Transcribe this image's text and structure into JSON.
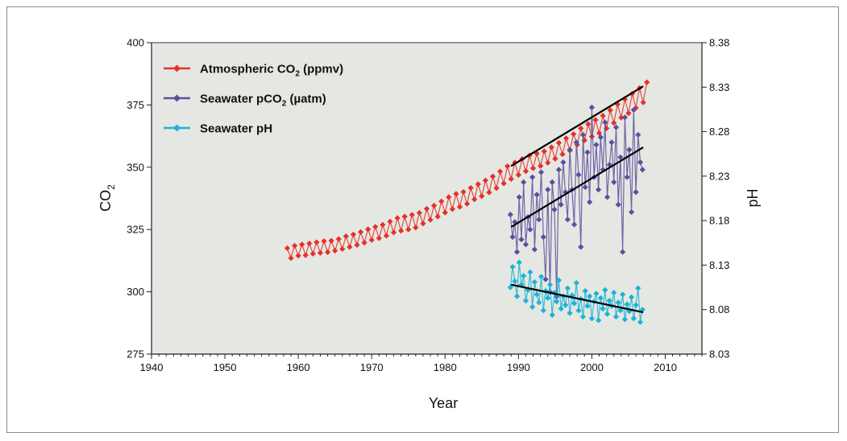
{
  "chart_data": {
    "type": "line",
    "title": "",
    "xlabel": "Year",
    "ylabel_left": "CO",
    "ylabel_left_sub": "2",
    "ylabel_right": "pH",
    "xlim": [
      1940,
      2015
    ],
    "ylim_left": [
      275,
      400
    ],
    "ylim_right": [
      8.03,
      8.38
    ],
    "x_ticks": [
      "1940",
      "1950",
      "1960",
      "1970",
      "1980",
      "1990",
      "2000",
      "2010"
    ],
    "y_left_ticks": [
      "275",
      "300",
      "325",
      "350",
      "375",
      "400"
    ],
    "y_right_ticks": [
      "8.03",
      "8.08",
      "8.13",
      "8.18",
      "8.23",
      "8.28",
      "8.33",
      "8.38"
    ],
    "grid": false,
    "background_color": "#e5e8e2",
    "legend_position": "top-left",
    "legend": [
      {
        "main": "Atmospheric CO",
        "sub": "2",
        "tail": " (ppmv)",
        "color": "#e8302a"
      },
      {
        "main": "Seawater pCO",
        "sub": "2",
        "tail": " (µatm)",
        "color": "#5a4fa0"
      },
      {
        "main": "Seawater pH",
        "sub": "",
        "tail": "",
        "color": "#1ab4d8"
      }
    ],
    "series": [
      {
        "name": "Atmospheric CO2 (ppmv)",
        "axis": "left",
        "color": "#e8302a",
        "x": [
          1958.5,
          1959,
          1959.5,
          1960,
          1960.5,
          1961,
          1961.5,
          1962,
          1962.5,
          1963,
          1963.5,
          1964,
          1964.5,
          1965,
          1965.5,
          1966,
          1966.5,
          1967,
          1967.5,
          1968,
          1968.5,
          1969,
          1969.5,
          1970,
          1970.5,
          1971,
          1971.5,
          1972,
          1972.5,
          1973,
          1973.5,
          1974,
          1974.5,
          1975,
          1975.5,
          1976,
          1976.5,
          1977,
          1977.5,
          1978,
          1978.5,
          1979,
          1979.5,
          1980,
          1980.5,
          1981,
          1981.5,
          1982,
          1982.5,
          1983,
          1983.5,
          1984,
          1984.5,
          1985,
          1985.5,
          1986,
          1986.5,
          1987,
          1987.5,
          1988,
          1988.5,
          1989,
          1989.5,
          1990,
          1990.5,
          1991,
          1991.5,
          1992,
          1992.5,
          1993,
          1993.5,
          1994,
          1994.5,
          1995,
          1995.5,
          1996,
          1996.5,
          1997,
          1997.5,
          1998,
          1998.5,
          1999,
          1999.5,
          2000,
          2000.5,
          2001,
          2001.5,
          2002,
          2002.5,
          2003,
          2003.5,
          2004,
          2004.5,
          2005,
          2005.5,
          2006,
          2006.5,
          2007,
          2007.5
        ],
        "y": [
          317.5,
          313.5,
          318.5,
          314.5,
          319,
          314.7,
          319.4,
          315.3,
          319.9,
          315.6,
          320.3,
          315.9,
          320.5,
          316.5,
          321.2,
          317.2,
          322.3,
          318,
          323,
          318.8,
          324,
          319.7,
          325.1,
          320.8,
          326.1,
          321.5,
          326.9,
          322.5,
          328.2,
          323.8,
          329.6,
          324.5,
          330.2,
          325,
          330.9,
          325.8,
          331.7,
          327.4,
          333.3,
          328.9,
          334.6,
          330.2,
          336.3,
          331.8,
          338,
          333.2,
          339.3,
          334.1,
          340.1,
          335.3,
          341.7,
          337.1,
          343.2,
          338.4,
          344.7,
          339.9,
          346.3,
          341.6,
          348.3,
          343.5,
          350.4,
          345.3,
          351.9,
          346.9,
          353.3,
          348.4,
          354.7,
          349.6,
          355.5,
          350.5,
          356.4,
          351.8,
          358,
          353.4,
          359.8,
          355.2,
          361.6,
          356.7,
          363.3,
          359,
          365.6,
          360.8,
          367.3,
          362.3,
          369,
          363.7,
          370.7,
          365.6,
          372.9,
          367.8,
          375.3,
          369.9,
          377.3,
          371.7,
          379.5,
          373.8,
          381.8,
          376,
          384.1
        ]
      },
      {
        "name": "Seawater pCO2 (µatm)",
        "axis": "left",
        "color": "#5a4fa0",
        "x": [
          1988.9,
          1989.2,
          1989.5,
          1989.8,
          1990.1,
          1990.4,
          1990.7,
          1991,
          1991.3,
          1991.6,
          1991.9,
          1992.2,
          1992.5,
          1992.8,
          1993.1,
          1993.4,
          1993.7,
          1994,
          1994.3,
          1994.6,
          1994.9,
          1995.2,
          1995.5,
          1995.8,
          1996.1,
          1996.4,
          1996.7,
          1997,
          1997.3,
          1997.6,
          1997.9,
          1998.2,
          1998.5,
          1998.8,
          1999.1,
          1999.4,
          1999.7,
          2000,
          2000.3,
          2000.6,
          2000.9,
          2001.2,
          2001.5,
          2001.8,
          2002.1,
          2002.4,
          2002.7,
          2003,
          2003.3,
          2003.6,
          2003.9,
          2004.2,
          2004.5,
          2004.8,
          2005.1,
          2005.4,
          2005.7,
          2006,
          2006.3,
          2006.6,
          2006.9
        ],
        "y": [
          331,
          322,
          328,
          316,
          338,
          321,
          344,
          319,
          330,
          325,
          346,
          317,
          339,
          329,
          348,
          322,
          305,
          341,
          300,
          344,
          333,
          298,
          349,
          335,
          352,
          340,
          329,
          357,
          341,
          327,
          360,
          347,
          318,
          363,
          342,
          356,
          336,
          374,
          346,
          359,
          341,
          362,
          349,
          368,
          338,
          351,
          360,
          344,
          366,
          335,
          354,
          316,
          370,
          346,
          357,
          332,
          373,
          340,
          363,
          352,
          349
        ]
      },
      {
        "name": "Seawater pH",
        "axis": "right",
        "color": "#1ab4d8",
        "x": [
          1988.9,
          1989.2,
          1989.5,
          1989.8,
          1990.1,
          1990.4,
          1990.7,
          1991,
          1991.3,
          1991.6,
          1991.9,
          1992.2,
          1992.5,
          1992.8,
          1993.1,
          1993.4,
          1993.7,
          1994,
          1994.3,
          1994.6,
          1994.9,
          1995.2,
          1995.5,
          1995.8,
          1996.1,
          1996.4,
          1996.7,
          1997,
          1997.3,
          1997.6,
          1997.9,
          1998.2,
          1998.5,
          1998.8,
          1999.1,
          1999.4,
          1999.7,
          2000,
          2000.3,
          2000.6,
          2000.9,
          2001.2,
          2001.5,
          2001.8,
          2002.1,
          2002.4,
          2002.7,
          2003,
          2003.3,
          2003.6,
          2003.9,
          2004.2,
          2004.5,
          2004.8,
          2005.1,
          2005.4,
          2005.7,
          2006,
          2006.3,
          2006.6,
          2006.9
        ],
        "y": [
          8.105,
          8.128,
          8.112,
          8.095,
          8.133,
          8.108,
          8.118,
          8.09,
          8.102,
          8.122,
          8.083,
          8.111,
          8.097,
          8.088,
          8.117,
          8.079,
          8.101,
          8.093,
          8.108,
          8.074,
          8.099,
          8.089,
          8.113,
          8.081,
          8.095,
          8.085,
          8.104,
          8.076,
          8.096,
          8.087,
          8.11,
          8.079,
          8.092,
          8.072,
          8.101,
          8.084,
          8.095,
          8.07,
          8.089,
          8.098,
          8.068,
          8.093,
          8.081,
          8.102,
          8.075,
          8.09,
          8.084,
          8.099,
          8.072,
          8.088,
          8.079,
          8.097,
          8.069,
          8.086,
          8.078,
          8.094,
          8.07,
          8.085,
          8.104,
          8.066,
          8.08
        ]
      }
    ],
    "trendlines": [
      {
        "axis": "left",
        "x": [
          1989,
          2007
        ],
        "y": [
          350.5,
          382.5
        ]
      },
      {
        "axis": "left",
        "x": [
          1989,
          2007
        ],
        "y": [
          326,
          358
        ]
      },
      {
        "axis": "right",
        "x": [
          1989,
          2007
        ],
        "y": [
          8.108,
          8.077
        ]
      }
    ]
  }
}
